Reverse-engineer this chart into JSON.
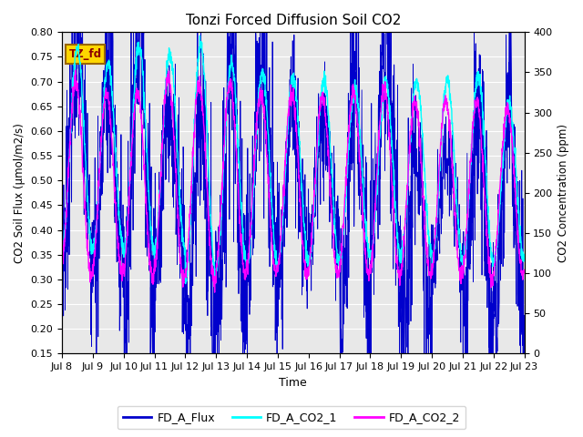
{
  "title": "Tonzi Forced Diffusion Soil CO2",
  "xlabel": "Time",
  "ylabel_left": "CO2 Soil Flux (μmol/m2/s)",
  "ylabel_right": "CO2 Concentration (ppm)",
  "ylim_left": [
    0.15,
    0.8
  ],
  "ylim_right": [
    0,
    400
  ],
  "yticks_left": [
    0.15,
    0.2,
    0.25,
    0.3,
    0.35,
    0.4,
    0.45,
    0.5,
    0.55,
    0.6,
    0.65,
    0.7,
    0.75,
    0.8
  ],
  "yticks_right": [
    0,
    50,
    100,
    150,
    200,
    250,
    300,
    350,
    400
  ],
  "xtick_labels": [
    "Jul 8",
    "Jul 9",
    "Jul 10",
    "Jul 11",
    "Jul 12",
    "Jul 13",
    "Jul 14",
    "Jul 15",
    "Jul 16",
    "Jul 17",
    "Jul 18",
    "Jul 19",
    "Jul 20",
    "Jul 21",
    "Jul 22",
    "Jul 23"
  ],
  "n_days": 15,
  "points_per_day": 144,
  "flux_color": "#0000CC",
  "co2_1_color": "#00FFFF",
  "co2_2_color": "#FF00FF",
  "flux_lw": 0.6,
  "co2_1_lw": 1.0,
  "co2_2_lw": 1.0,
  "legend_labels": [
    "FD_A_Flux",
    "FD_A_CO2_1",
    "FD_A_CO2_2"
  ],
  "site_label": "TZ_fd",
  "site_label_bg": "#FFD700",
  "site_label_fg": "#8B0000",
  "bg_color": "#E8E8E8",
  "flux_day_max": [
    0.77,
    0.72,
    0.79,
    0.65,
    0.63,
    0.73,
    0.75,
    0.65,
    0.61,
    0.67,
    0.75,
    0.57,
    0.56,
    0.65,
    0.65
  ],
  "flux_day_min": [
    0.37,
    0.33,
    0.24,
    0.32,
    0.19,
    0.22,
    0.34,
    0.32,
    0.36,
    0.2,
    0.35,
    0.19,
    0.34,
    0.19,
    0.23
  ],
  "co2_1_day_max": [
    380,
    360,
    385,
    375,
    385,
    360,
    350,
    345,
    340,
    330,
    340,
    340,
    340,
    345,
    310
  ],
  "co2_1_day_min": [
    130,
    130,
    125,
    130,
    95,
    110,
    110,
    115,
    115,
    120,
    120,
    125,
    115,
    115,
    115
  ],
  "co2_2_day_max": [
    340,
    325,
    325,
    345,
    335,
    335,
    325,
    325,
    320,
    325,
    330,
    315,
    315,
    315,
    305
  ],
  "co2_2_day_min": [
    100,
    100,
    95,
    93,
    88,
    98,
    100,
    98,
    98,
    100,
    98,
    98,
    98,
    93,
    98
  ]
}
